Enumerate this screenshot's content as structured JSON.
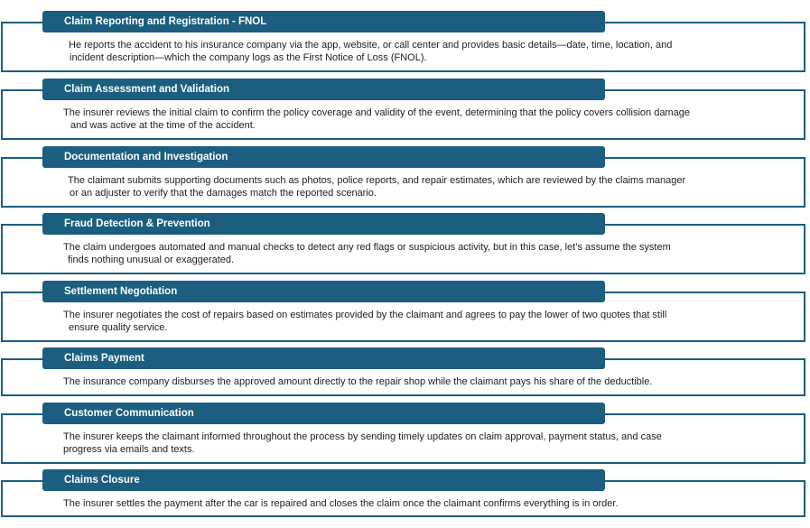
{
  "steps": [
    {
      "title": "Claim Reporting and Registration - FNOL",
      "lines": [
        "He reports the accident to his insurance company via the app, website, or call center and provides basic details—date, time, location, and",
        "incident description—which the company logs as the First Notice of Loss (FNOL)."
      ]
    },
    {
      "title": "Claim Assessment and Validation",
      "lines": [
        "The insurer reviews the initial claim to confirm the policy coverage and validity of the event, determining that the policy covers collision damage",
        "and was active at the time of the accident."
      ]
    },
    {
      "title": "Documentation and Investigation",
      "lines": [
        "The claimant submits supporting documents such as photos, police reports, and repair estimates, which are reviewed by the claims manager",
        "or an adjuster to verify that the damages match the reported scenario."
      ]
    },
    {
      "title": "Fraud Detection & Prevention",
      "lines": [
        "The claim undergoes automated and manual checks to detect any red flags or suspicious activity, but in this case, let’s assume the system",
        "finds nothing unusual or exaggerated."
      ]
    },
    {
      "title": "Settlement Negotiation",
      "lines": [
        "The insurer negotiates the cost of repairs based on estimates provided by the claimant and agrees to pay the lower of two quotes that still",
        "ensure quality service."
      ]
    },
    {
      "title": "Claims Payment",
      "lines": [
        "The insurance company disburses the approved amount directly to the repair shop while the claimant pays his share of the deductible."
      ]
    },
    {
      "title": "Customer Communication",
      "lines": [
        "The insurer keeps the claimant informed throughout the process by sending timely updates on claim approval, payment status, and case",
        "progress via emails and texts."
      ]
    },
    {
      "title": "Claims Closure",
      "lines": [
        "The insurer settles the payment after the car is repaired and closes the claim once the claimant confirms everything is in order."
      ]
    }
  ]
}
